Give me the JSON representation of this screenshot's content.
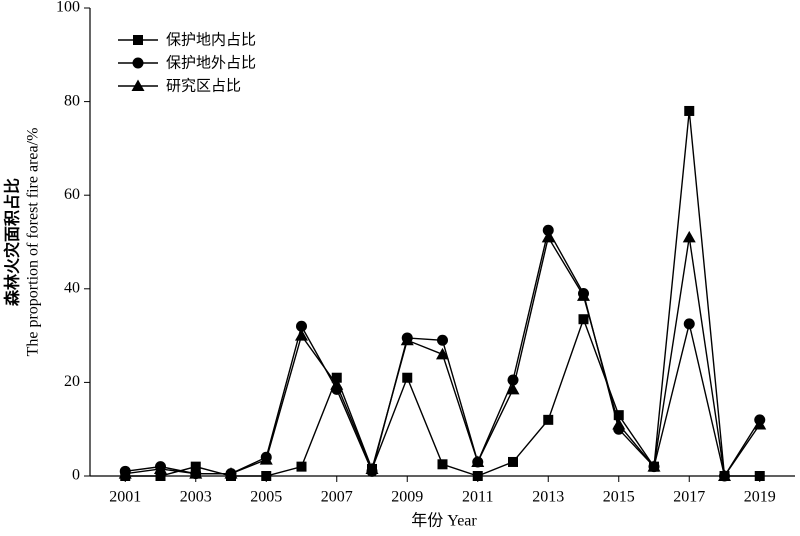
{
  "chart_data": {
    "type": "line",
    "x_label": "年份 Year",
    "y_label": [
      "森林火灾面积占比",
      "The proportion of forest fire area/%"
    ],
    "x": [
      2001,
      2002,
      2003,
      2004,
      2005,
      2006,
      2007,
      2008,
      2009,
      2010,
      2011,
      2012,
      2013,
      2014,
      2015,
      2016,
      2017,
      2018,
      2019
    ],
    "series": [
      {
        "name": "保护地内占比",
        "color": "#000000",
        "marker": "square",
        "values": [
          0,
          0,
          2,
          0,
          0,
          2,
          21,
          1.5,
          21,
          2.5,
          0,
          3,
          12,
          33.5,
          13,
          2,
          78,
          0,
          0
        ]
      },
      {
        "name": "保护地外占比",
        "color": "#000000",
        "marker": "circle",
        "values": [
          1,
          2,
          0.5,
          0.5,
          4,
          32,
          18.5,
          1,
          29.5,
          29,
          3,
          20.5,
          52.5,
          39,
          10,
          2,
          32.5,
          0,
          12
        ]
      },
      {
        "name": "研究区占比",
        "color": "#000000",
        "marker": "triangle",
        "values": [
          0.5,
          1.5,
          0.5,
          0.5,
          3.5,
          30,
          19.5,
          1.5,
          29,
          26,
          3,
          18.5,
          51,
          38.5,
          11,
          2,
          51,
          0,
          11
        ]
      }
    ],
    "xlim": [
      2000,
      2020
    ],
    "xticks": [
      2001,
      2003,
      2005,
      2007,
      2009,
      2011,
      2013,
      2015,
      2017,
      2019
    ],
    "ylim": [
      0,
      100
    ],
    "yticks": [
      0,
      20,
      40,
      60,
      80,
      100
    ],
    "legend": "upper-left"
  }
}
